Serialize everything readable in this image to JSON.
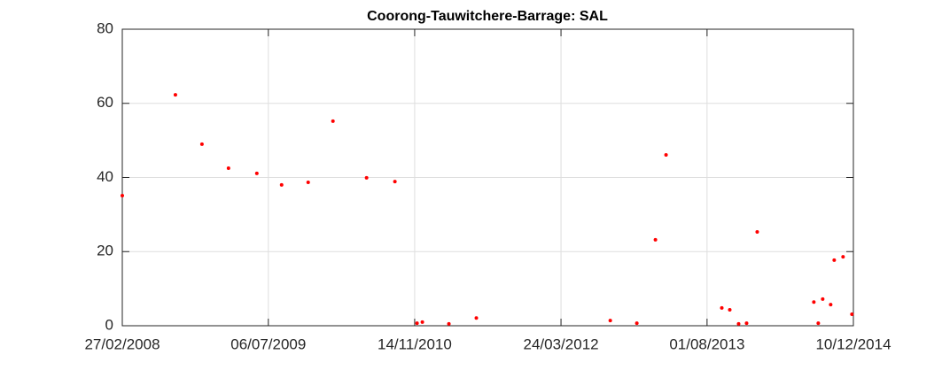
{
  "chart_data": {
    "type": "scatter",
    "title": "Coorong-Tauwitchere-Barrage: SAL",
    "series": [
      {
        "color": "#ff0000",
        "x": [
          "2008-02-27",
          "2008-08-25",
          "2008-11-23",
          "2009-02-21",
          "2009-05-28",
          "2009-08-20",
          "2009-11-18",
          "2010-02-10",
          "2010-06-04",
          "2010-09-08",
          "2010-11-22",
          "2010-12-10",
          "2011-03-10",
          "2011-06-11",
          "2012-09-07",
          "2012-12-06",
          "2013-02-07",
          "2013-03-15",
          "2013-09-20",
          "2013-10-17",
          "2013-11-16",
          "2013-12-13",
          "2014-01-18",
          "2014-07-29",
          "2014-08-13",
          "2014-08-28",
          "2014-09-24",
          "2014-10-06",
          "2014-11-05",
          "2014-12-05"
        ],
        "values": [
          35.1,
          62.3,
          49.0,
          42.5,
          41.1,
          38.0,
          38.7,
          55.2,
          39.9,
          38.9,
          0.7,
          1.0,
          0.5,
          2.1,
          1.4,
          0.7,
          23.2,
          46.1,
          4.8,
          4.3,
          0.5,
          0.7,
          25.3,
          6.4,
          0.7,
          7.2,
          5.7,
          17.7,
          18.6,
          3.1
        ]
      }
    ],
    "xlim": [
      "2008-02-27",
      "2014-12-10"
    ],
    "xticks": [
      {
        "value": "2008-02-27",
        "label": "27/02/2008"
      },
      {
        "value": "2009-07-06",
        "label": "06/07/2009"
      },
      {
        "value": "2010-11-14",
        "label": "14/11/2010"
      },
      {
        "value": "2012-03-24",
        "label": "24/03/2012"
      },
      {
        "value": "2013-08-01",
        "label": "01/08/2013"
      },
      {
        "value": "2014-12-10",
        "label": "10/12/2014"
      }
    ],
    "ylim": [
      0,
      80
    ],
    "yticks": [
      0,
      20,
      40,
      60,
      80
    ],
    "grid": true
  }
}
